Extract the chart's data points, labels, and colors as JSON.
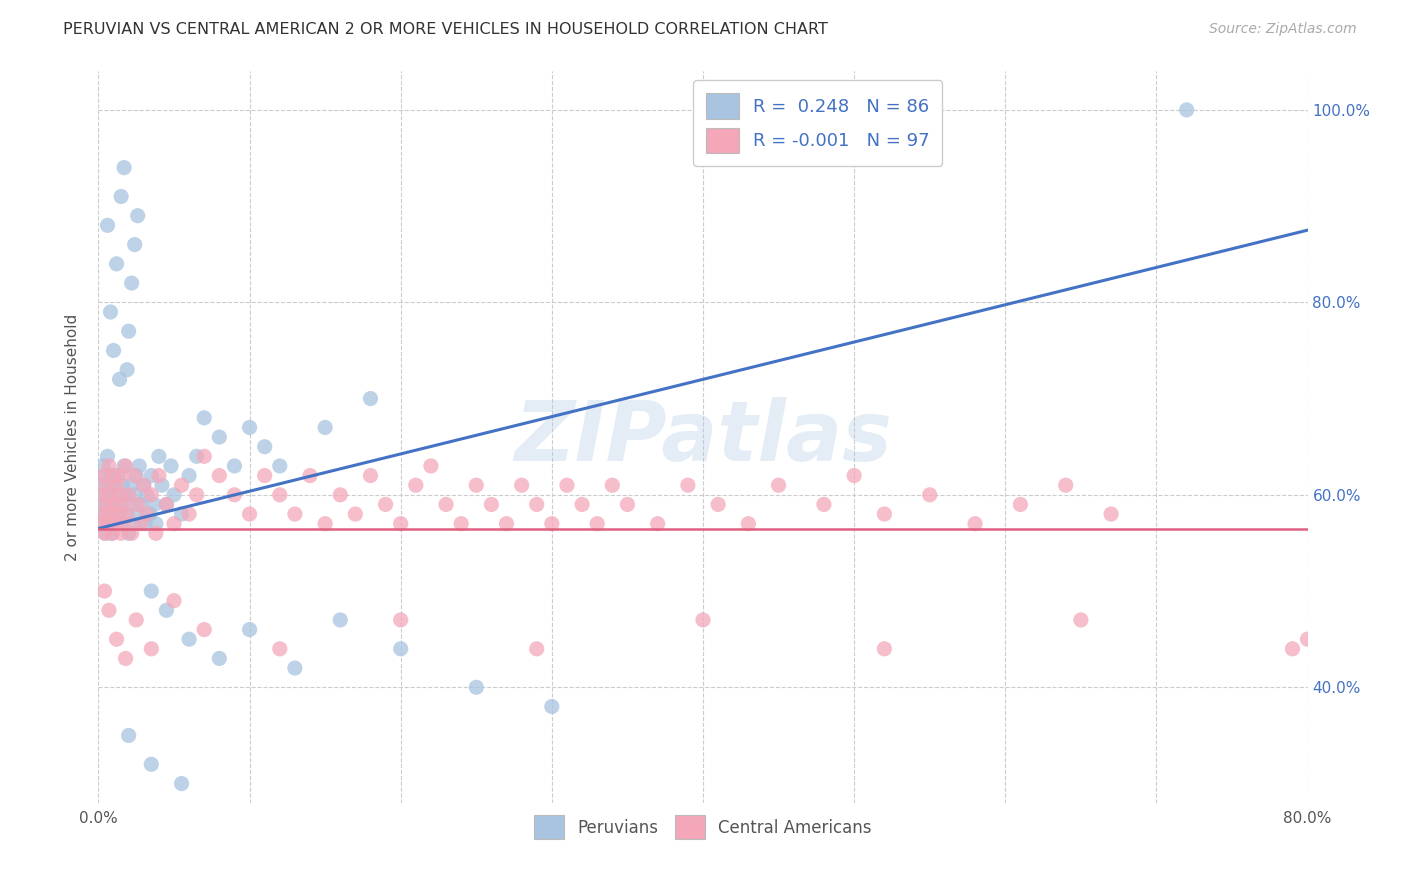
{
  "title": "PERUVIAN VS CENTRAL AMERICAN 2 OR MORE VEHICLES IN HOUSEHOLD CORRELATION CHART",
  "source": "Source: ZipAtlas.com",
  "ylabel": "2 or more Vehicles in Household",
  "xlim": [
    0.0,
    0.8
  ],
  "ylim": [
    0.28,
    1.04
  ],
  "x_ticks": [
    0.0,
    0.1,
    0.2,
    0.3,
    0.4,
    0.5,
    0.6,
    0.7,
    0.8
  ],
  "x_tick_labels": [
    "0.0%",
    "",
    "",
    "",
    "",
    "",
    "",
    "",
    "80.0%"
  ],
  "y_ticks": [
    0.4,
    0.6,
    0.8,
    1.0
  ],
  "y_tick_labels": [
    "40.0%",
    "60.0%",
    "80.0%",
    "100.0%"
  ],
  "peruvian_color": "#a8c4e0",
  "central_american_color": "#f4a7b9",
  "peruvian_line_color": "#4472c4",
  "central_american_line_color": "#e06080",
  "watermark": "ZIPatlas",
  "peruvian_R": 0.248,
  "peruvian_N": 86,
  "central_R": -0.001,
  "central_N": 97,
  "blue_trend_x0": 0.0,
  "blue_trend_y0": 0.565,
  "blue_trend_x1": 0.8,
  "blue_trend_y1": 0.875,
  "pink_trend_y": 0.565,
  "peru_x": [
    0.001,
    0.002,
    0.003,
    0.003,
    0.004,
    0.004,
    0.005,
    0.005,
    0.006,
    0.006,
    0.007,
    0.007,
    0.008,
    0.008,
    0.009,
    0.009,
    0.01,
    0.01,
    0.011,
    0.012,
    0.013,
    0.013,
    0.014,
    0.015,
    0.016,
    0.017,
    0.018,
    0.019,
    0.02,
    0.021,
    0.022,
    0.023,
    0.024,
    0.025,
    0.026,
    0.027,
    0.028,
    0.03,
    0.031,
    0.032,
    0.034,
    0.035,
    0.037,
    0.038,
    0.04,
    0.042,
    0.045,
    0.048,
    0.05,
    0.055,
    0.06,
    0.065,
    0.07,
    0.08,
    0.09,
    0.1,
    0.11,
    0.12,
    0.15,
    0.18,
    0.019,
    0.02,
    0.022,
    0.024,
    0.026,
    0.015,
    0.017,
    0.012,
    0.008,
    0.006,
    0.01,
    0.014,
    0.035,
    0.045,
    0.06,
    0.08,
    0.1,
    0.13,
    0.16,
    0.2,
    0.25,
    0.3,
    0.02,
    0.035,
    0.055,
    0.72
  ],
  "peru_y": [
    0.59,
    0.61,
    0.57,
    0.63,
    0.58,
    0.62,
    0.6,
    0.56,
    0.64,
    0.59,
    0.61,
    0.57,
    0.6,
    0.58,
    0.56,
    0.62,
    0.59,
    0.61,
    0.57,
    0.6,
    0.58,
    0.62,
    0.59,
    0.57,
    0.61,
    0.63,
    0.58,
    0.6,
    0.56,
    0.59,
    0.61,
    0.57,
    0.6,
    0.62,
    0.58,
    0.63,
    0.59,
    0.61,
    0.57,
    0.6,
    0.58,
    0.62,
    0.59,
    0.57,
    0.64,
    0.61,
    0.59,
    0.63,
    0.6,
    0.58,
    0.62,
    0.64,
    0.68,
    0.66,
    0.63,
    0.67,
    0.65,
    0.63,
    0.67,
    0.7,
    0.73,
    0.77,
    0.82,
    0.86,
    0.89,
    0.91,
    0.94,
    0.84,
    0.79,
    0.88,
    0.75,
    0.72,
    0.5,
    0.48,
    0.45,
    0.43,
    0.46,
    0.42,
    0.47,
    0.44,
    0.4,
    0.38,
    0.35,
    0.32,
    0.3,
    1.0
  ],
  "central_x": [
    0.001,
    0.002,
    0.003,
    0.003,
    0.004,
    0.005,
    0.005,
    0.006,
    0.007,
    0.008,
    0.008,
    0.009,
    0.01,
    0.01,
    0.011,
    0.012,
    0.013,
    0.014,
    0.015,
    0.015,
    0.016,
    0.017,
    0.018,
    0.019,
    0.02,
    0.022,
    0.024,
    0.026,
    0.028,
    0.03,
    0.032,
    0.035,
    0.038,
    0.04,
    0.045,
    0.05,
    0.055,
    0.06,
    0.065,
    0.07,
    0.08,
    0.09,
    0.1,
    0.11,
    0.12,
    0.13,
    0.14,
    0.15,
    0.16,
    0.17,
    0.18,
    0.19,
    0.2,
    0.21,
    0.22,
    0.23,
    0.24,
    0.25,
    0.26,
    0.27,
    0.28,
    0.29,
    0.3,
    0.31,
    0.32,
    0.33,
    0.34,
    0.35,
    0.37,
    0.39,
    0.41,
    0.43,
    0.45,
    0.48,
    0.5,
    0.52,
    0.55,
    0.58,
    0.61,
    0.64,
    0.67,
    0.004,
    0.007,
    0.012,
    0.018,
    0.025,
    0.035,
    0.05,
    0.07,
    0.12,
    0.2,
    0.29,
    0.4,
    0.52,
    0.65,
    0.79,
    0.8
  ],
  "central_y": [
    0.57,
    0.6,
    0.58,
    0.62,
    0.56,
    0.61,
    0.59,
    0.57,
    0.63,
    0.58,
    0.6,
    0.56,
    0.62,
    0.59,
    0.57,
    0.61,
    0.58,
    0.6,
    0.56,
    0.62,
    0.59,
    0.57,
    0.63,
    0.58,
    0.6,
    0.56,
    0.62,
    0.59,
    0.57,
    0.61,
    0.58,
    0.6,
    0.56,
    0.62,
    0.59,
    0.57,
    0.61,
    0.58,
    0.6,
    0.64,
    0.62,
    0.6,
    0.58,
    0.62,
    0.6,
    0.58,
    0.62,
    0.57,
    0.6,
    0.58,
    0.62,
    0.59,
    0.57,
    0.61,
    0.63,
    0.59,
    0.57,
    0.61,
    0.59,
    0.57,
    0.61,
    0.59,
    0.57,
    0.61,
    0.59,
    0.57,
    0.61,
    0.59,
    0.57,
    0.61,
    0.59,
    0.57,
    0.61,
    0.59,
    0.62,
    0.58,
    0.6,
    0.57,
    0.59,
    0.61,
    0.58,
    0.5,
    0.48,
    0.45,
    0.43,
    0.47,
    0.44,
    0.49,
    0.46,
    0.44,
    0.47,
    0.44,
    0.47,
    0.44,
    0.47,
    0.44,
    0.45
  ]
}
